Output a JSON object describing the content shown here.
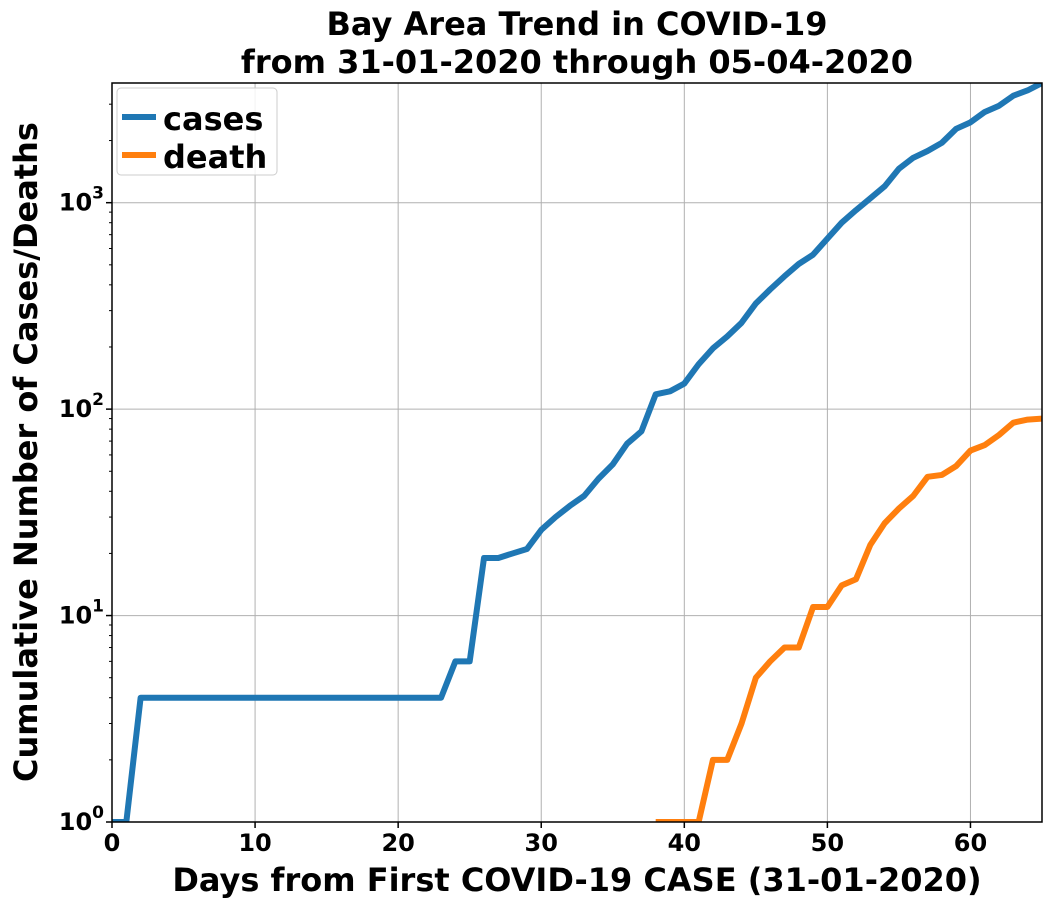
{
  "chart_data": {
    "type": "line",
    "title": [
      "Bay Area Trend in COVID-19",
      "from 31-01-2020 through 05-04-2020"
    ],
    "xlabel": "Days from First COVID-19 CASE (31-01-2020)",
    "ylabel": "Cumulative Number of Cases/Deaths",
    "xlim": [
      0,
      65
    ],
    "ylim": [
      1,
      3800
    ],
    "yscale": "log",
    "grid": true,
    "legend_position": "top-left",
    "x_ticks": [
      0,
      10,
      20,
      30,
      40,
      50,
      60
    ],
    "y_ticks": [
      {
        "base": "10",
        "exp": "0",
        "value": 1
      },
      {
        "base": "10",
        "exp": "1",
        "value": 10
      },
      {
        "base": "10",
        "exp": "2",
        "value": 100
      },
      {
        "base": "10",
        "exp": "3",
        "value": 1000
      }
    ],
    "series": [
      {
        "name": "cases",
        "color": "#1f77b4",
        "x": [
          0,
          1,
          2,
          3,
          4,
          5,
          6,
          7,
          8,
          9,
          10,
          11,
          12,
          13,
          14,
          15,
          16,
          17,
          18,
          19,
          20,
          21,
          22,
          23,
          24,
          25,
          26,
          27,
          28,
          29,
          30,
          31,
          32,
          33,
          34,
          35,
          36,
          37,
          38,
          39,
          40,
          41,
          42,
          43,
          44,
          45,
          46,
          47,
          48,
          49,
          50,
          51,
          52,
          53,
          54,
          55,
          56,
          57,
          58,
          59,
          60,
          61,
          62,
          63,
          64,
          65
        ],
        "y": [
          1,
          1,
          4,
          4,
          4,
          4,
          4,
          4,
          4,
          4,
          4,
          4,
          4,
          4,
          4,
          4,
          4,
          4,
          4,
          4,
          4,
          4,
          4,
          4,
          6,
          6,
          19,
          19,
          20,
          21,
          26,
          30,
          34,
          38,
          46,
          54,
          68,
          78,
          118,
          122,
          133,
          165,
          197,
          225,
          262,
          325,
          380,
          440,
          505,
          560,
          670,
          800,
          920,
          1050,
          1200,
          1460,
          1650,
          1780,
          1950,
          2280,
          2450,
          2750,
          2950,
          3300,
          3500,
          3800
        ]
      },
      {
        "name": "death",
        "color": "#ff7f0e",
        "x": [
          38,
          39,
          40,
          41,
          42,
          43,
          44,
          45,
          46,
          47,
          48,
          49,
          50,
          51,
          52,
          53,
          54,
          55,
          56,
          57,
          58,
          59,
          60,
          61,
          62,
          63,
          64,
          65
        ],
        "y": [
          1,
          1,
          1,
          1,
          2,
          2,
          3,
          5,
          6,
          7,
          7,
          11,
          11,
          14,
          15,
          22,
          28,
          33,
          38,
          47,
          48,
          53,
          63,
          67,
          75,
          86,
          89,
          90
        ]
      }
    ]
  }
}
